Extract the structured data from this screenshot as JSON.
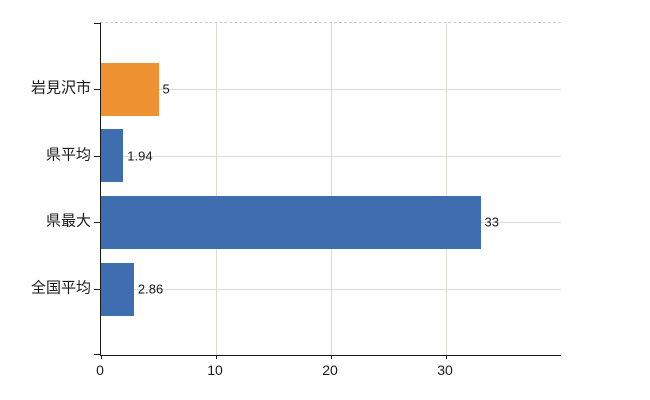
{
  "chart_data": {
    "type": "bar",
    "orientation": "horizontal",
    "title": "",
    "xlabel": "",
    "ylabel": "",
    "categories": [
      "岩見沢市",
      "県平均",
      "県最大",
      "全国平均"
    ],
    "values": [
      5,
      1.94,
      33,
      2.86
    ],
    "value_labels": [
      "5",
      "1.94",
      "33",
      "2.86"
    ],
    "series": [
      {
        "name": "",
        "values": [
          5,
          1.94,
          33,
          2.86
        ]
      }
    ],
    "bar_colors": [
      "#EF9232",
      "#3E6EAF",
      "#3E6EAF",
      "#3E6EAF"
    ],
    "xlim": [
      0,
      40
    ],
    "xticks": [
      0,
      10,
      20,
      30
    ],
    "xtick_labels": [
      "0",
      "10",
      "20",
      "30"
    ],
    "grid": true,
    "legend": false
  },
  "colors": {
    "highlight_bar": "#EF9232",
    "default_bar": "#3E6EAF",
    "gridline": "#d9ddd3",
    "axis": "#1a1a1a",
    "plot_top_border": "#d2cad2",
    "background": "#ffffff",
    "text": "#1a1a1a"
  }
}
